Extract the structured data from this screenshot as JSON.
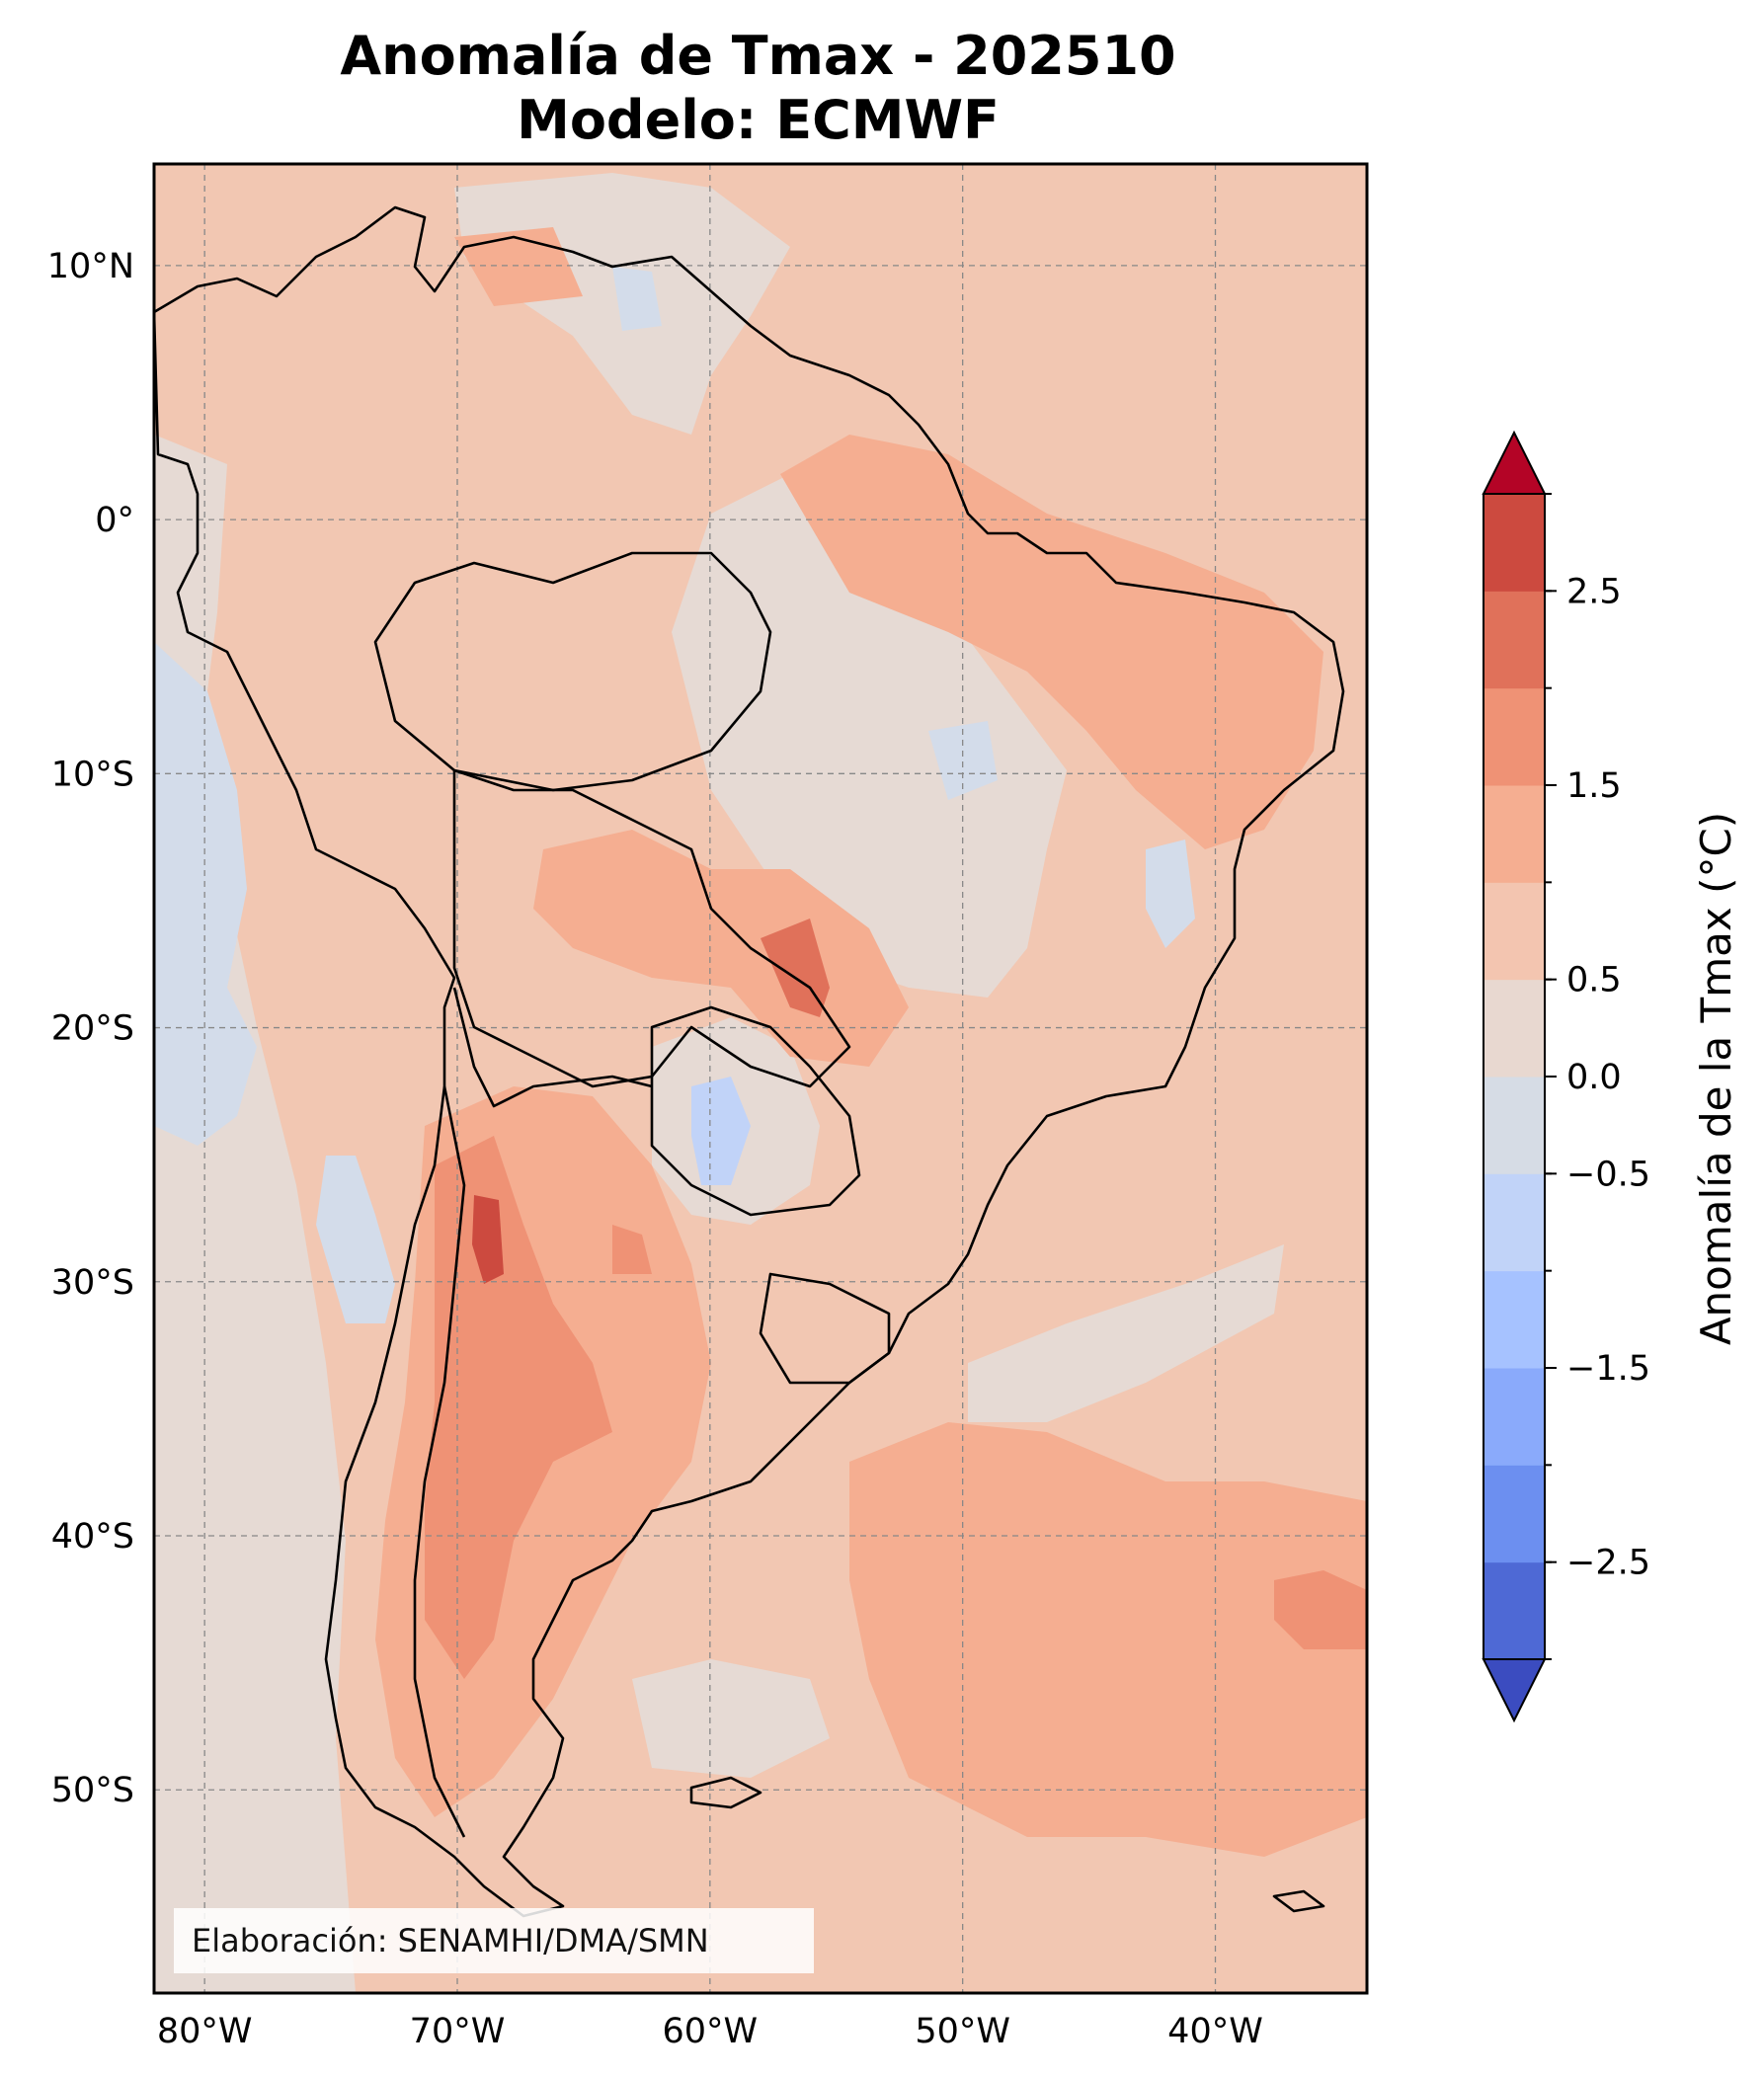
{
  "title": {
    "line1": "Anomalía de Tmax - 202510",
    "line2": "Modelo: ECMWF"
  },
  "map": {
    "lon_range": [
      -82,
      -34
    ],
    "lat_range": [
      -58,
      14
    ],
    "lon_ticks": [
      {
        "value": -80,
        "label": "80°W"
      },
      {
        "value": -70,
        "label": "70°W"
      },
      {
        "value": -60,
        "label": "60°W"
      },
      {
        "value": -50,
        "label": "50°W"
      },
      {
        "value": -40,
        "label": "40°W"
      }
    ],
    "lat_ticks": [
      {
        "value": 10,
        "label": "10°N"
      },
      {
        "value": 0,
        "label": "0°"
      },
      {
        "value": -10,
        "label": "10°S"
      },
      {
        "value": -20,
        "label": "20°S"
      },
      {
        "value": -30,
        "label": "30°S"
      },
      {
        "value": -40,
        "label": "40°S"
      },
      {
        "value": -50,
        "label": "50°S"
      }
    ],
    "gridlines": true,
    "credit": "Elaboración: SENAMHI/DMA/SMN"
  },
  "colorbar": {
    "label": "Anomalía de la Tmax (°C)",
    "levels": [
      -3.0,
      -2.5,
      -2.0,
      -1.5,
      -1.0,
      -0.5,
      0.0,
      0.5,
      1.0,
      1.5,
      2.0,
      2.5,
      3.0
    ],
    "tick_labels": [
      {
        "value": 2.5,
        "label": "2.5"
      },
      {
        "value": 1.5,
        "label": "1.5"
      },
      {
        "value": 0.5,
        "label": "0.5"
      },
      {
        "value": 0.0,
        "label": "0.0"
      },
      {
        "value": -0.5,
        "label": "−0.5"
      },
      {
        "value": -1.5,
        "label": "−1.5"
      },
      {
        "value": -2.5,
        "label": "−2.5"
      }
    ],
    "extend": "both",
    "colors": [
      "#3b4cc0",
      "#4e69d5",
      "#6c8ff0",
      "#8aaafb",
      "#a6c2ff",
      "#c1d3f8",
      "#d6dce5",
      "#e8d8d0",
      "#f3c5b0",
      "#f5ae91",
      "#ef9275",
      "#e0715a",
      "#cc4a3f",
      "#b40426"
    ]
  }
}
